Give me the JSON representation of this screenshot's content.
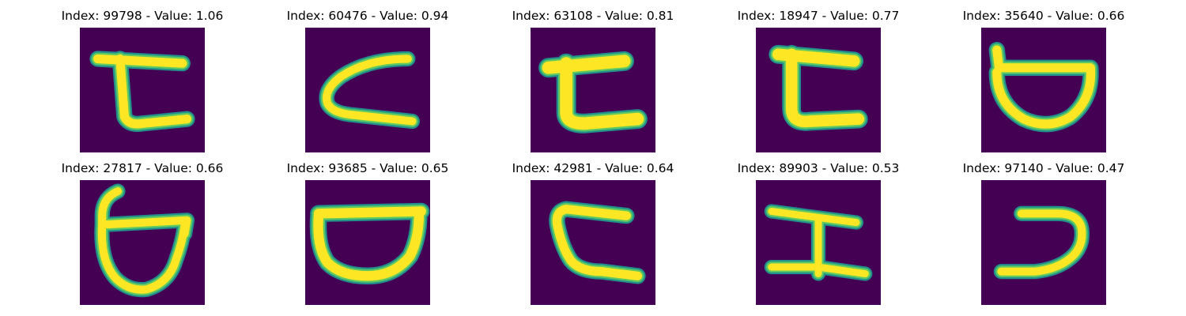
{
  "colors": {
    "background": "#440154",
    "stroke_edge": "#21918c",
    "stroke_mid": "#5ec962",
    "stroke_core": "#fde725"
  },
  "panels": [
    {
      "title": "Index: 99798 - Value: 1.06",
      "glyph": "tee-hook-open-right"
    },
    {
      "title": "Index: 60476 - Value: 0.94",
      "glyph": "open-right-curve"
    },
    {
      "title": "Index: 63108 - Value: 0.81",
      "glyph": "tee-hook-open-right-bold"
    },
    {
      "title": "Index: 18947 - Value: 0.77",
      "glyph": "tee-hook-open-right"
    },
    {
      "title": "Index: 35640 - Value: 0.66",
      "glyph": "bowl-with-bar"
    },
    {
      "title": "Index: 27817 - Value: 0.66",
      "glyph": "bowl-with-tall-stem"
    },
    {
      "title": "Index: 93685 - Value: 0.65",
      "glyph": "wide-bowl"
    },
    {
      "title": "Index: 42981 - Value: 0.64",
      "glyph": "open-right-bracket"
    },
    {
      "title": "Index: 89903 - Value: 0.53",
      "glyph": "capital-i-serif"
    },
    {
      "title": "Index: 97140 - Value: 0.47",
      "glyph": "open-left-curve"
    }
  ]
}
